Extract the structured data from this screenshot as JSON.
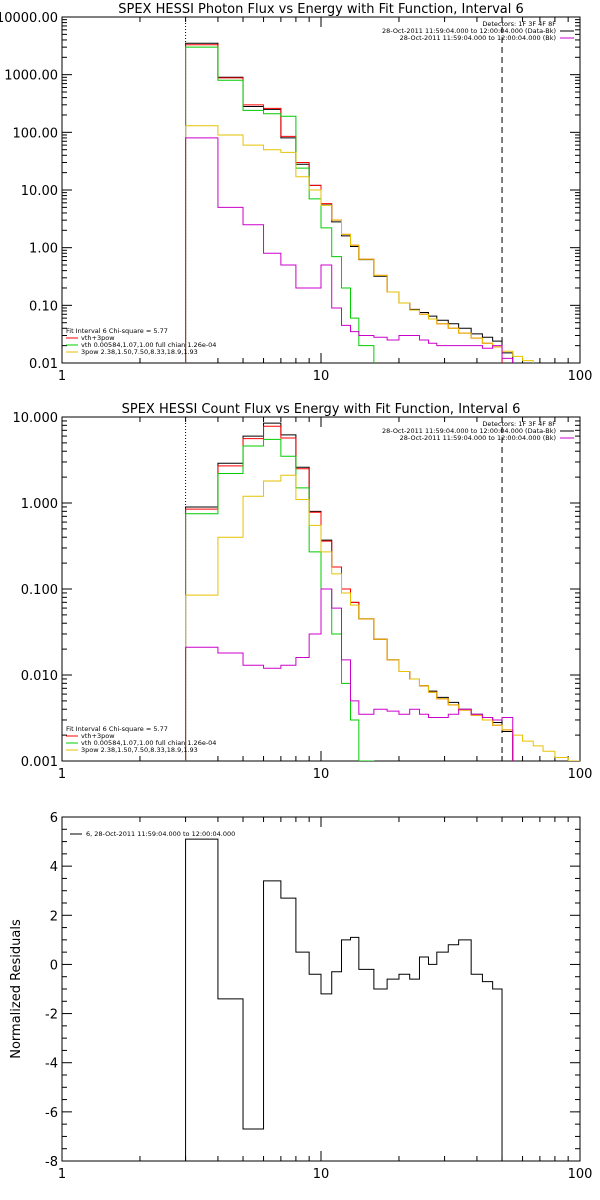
{
  "chart_data": [
    {
      "type": "line",
      "title": "SPEX HESSI Photon Flux vs Energy with Fit Function, Interval 6",
      "xscale": "log",
      "yscale": "log",
      "xlim": [
        1,
        100
      ],
      "ylim": [
        0.01,
        10000
      ],
      "xticks": [
        "1",
        "10",
        "100"
      ],
      "yticks": [
        "0.01",
        "0.10",
        "1.00",
        "10.00",
        "100.00",
        "1000.00",
        "10000.00"
      ],
      "vlines": [
        {
          "x": 3,
          "style": "dotted"
        },
        {
          "x": 50,
          "style": "dashed"
        }
      ],
      "top_legend": [
        {
          "text": "Detectors: 1F 3F 4F 8F",
          "color": "#000000"
        },
        {
          "text": "28-Oct-2011 11:59:04.000 to 12:00:04.000 (Data-Bk)",
          "color": "#000000"
        },
        {
          "text": "28-Oct-2011 11:59:04.000 to 12:00:04.000 (Bk)",
          "color": "#cc00cc"
        }
      ],
      "fit_legend_header": "Fit Interval 6   Chi-square = 5.77",
      "fit_legend": [
        {
          "text": "vth+3pow",
          "color": "#ff0000"
        },
        {
          "text": "vth 0.00584,1.07,1.00  full chian 1.26e-04",
          "color": "#00cc00"
        },
        {
          "text": "3pow 2.38,1.50,7.50,8.33,18.9,1.93",
          "color": "#e6c200"
        }
      ],
      "edges": [
        3,
        4,
        5,
        6,
        7,
        8,
        9,
        10,
        11,
        12,
        13,
        14,
        16,
        18,
        20,
        22,
        24,
        26,
        28,
        31,
        34,
        38,
        42,
        46,
        50,
        55,
        60,
        66,
        72
      ],
      "series": [
        {
          "color": "#000000",
          "values": [
            3500,
            900,
            280,
            250,
            80,
            28,
            12,
            5.5,
            2.8,
            1.6,
            1.05,
            0.62,
            0.32,
            0.17,
            0.11,
            0.085,
            0.075,
            0.065,
            0.055,
            0.048,
            0.04,
            0.032,
            0.028,
            0.024,
            0.015
          ]
        },
        {
          "color": "#ff0000",
          "values": [
            3300,
            880,
            300,
            260,
            85,
            30,
            12,
            5.8,
            3,
            1.7,
            1.1,
            0.63,
            0.33,
            0.17,
            0.11,
            0.083,
            0.07,
            0.058,
            0.048,
            0.04,
            0.033,
            0.027,
            0.022,
            0.019
          ]
        },
        {
          "color": "#00cc00",
          "values": [
            3000,
            800,
            240,
            210,
            190,
            24,
            7,
            2.2,
            0.7,
            0.2,
            0.06,
            0.02,
            0.008
          ]
        },
        {
          "color": "#e6c200",
          "values": [
            130,
            90,
            60,
            50,
            45,
            17,
            10,
            5.4,
            3,
            1.7,
            1.1,
            0.63,
            0.33,
            0.17,
            0.11,
            0.083,
            0.07,
            0.058,
            0.048,
            0.04,
            0.033,
            0.027,
            0.022,
            0.019,
            0.016,
            0.013,
            0.011,
            0.009
          ]
        },
        {
          "color": "#cc00cc",
          "values": [
            80,
            5,
            2.5,
            0.8,
            0.5,
            0.2,
            0.2,
            0.5,
            0.09,
            0.045,
            0.035,
            0.03,
            0.028,
            0.025,
            0.03,
            0.03,
            0.025,
            0.022,
            0.02,
            0.02,
            0.02,
            0.02,
            0.018,
            0.02,
            0.012
          ]
        }
      ]
    },
    {
      "type": "line",
      "title": "SPEX HESSI Count Flux vs Energy with Fit Function, Interval 6",
      "xscale": "log",
      "yscale": "log",
      "xlim": [
        1,
        100
      ],
      "ylim": [
        0.001,
        10
      ],
      "xticks": [
        "1",
        "10",
        "100"
      ],
      "yticks": [
        "0.001",
        "0.010",
        "0.100",
        "1.000",
        "10.000"
      ],
      "vlines": [
        {
          "x": 3,
          "style": "dotted"
        },
        {
          "x": 50,
          "style": "dashed"
        }
      ],
      "top_legend": [
        {
          "text": "Detectors: 1F 3F 4F 8F",
          "color": "#000000"
        },
        {
          "text": "28-Oct-2011 11:59:04.000 to 12:00:04.000 (Data-Bk)",
          "color": "#000000"
        },
        {
          "text": "28-Oct-2011 11:59:04.000 to 12:00:04.000 (Bk)",
          "color": "#cc00cc"
        }
      ],
      "fit_legend_header": "Fit Interval 6   Chi-square = 5.77",
      "fit_legend": [
        {
          "text": "vth+3pow",
          "color": "#ff0000"
        },
        {
          "text": "vth 0.00584,1.07,1.00  full chian 1.26e-04",
          "color": "#00cc00"
        },
        {
          "text": "3pow 2.38,1.50,7.50,8.33,18.9,1.93",
          "color": "#e6c200"
        }
      ],
      "edges": [
        3,
        4,
        5,
        6,
        7,
        8,
        9,
        10,
        11,
        12,
        13,
        14,
        16,
        18,
        20,
        22,
        24,
        26,
        28,
        31,
        34,
        38,
        42,
        46,
        50,
        55,
        60,
        66,
        72,
        80,
        90,
        100
      ],
      "series": [
        {
          "color": "#000000",
          "values": [
            0.9,
            2.9,
            6,
            8.5,
            6.2,
            2.6,
            0.8,
            0.37,
            0.18,
            0.1,
            0.07,
            0.045,
            0.026,
            0.015,
            0.011,
            0.009,
            0.0075,
            0.0065,
            0.0055,
            0.0048,
            0.004,
            0.0035,
            0.0032,
            0.0028,
            0.0022
          ]
        },
        {
          "color": "#ff0000",
          "values": [
            0.85,
            2.7,
            5.6,
            7.8,
            5.7,
            2.5,
            0.78,
            0.36,
            0.18,
            0.1,
            0.07,
            0.045,
            0.026,
            0.015,
            0.011,
            0.009,
            0.0075,
            0.0063,
            0.0053,
            0.0045,
            0.0039,
            0.0034,
            0.003,
            0.0026,
            0.0023
          ]
        },
        {
          "color": "#00cc00",
          "values": [
            0.75,
            2.2,
            4.6,
            5.5,
            3.5,
            1.5,
            0.27,
            0.1,
            0.03,
            0.008,
            0.003,
            0.001
          ]
        },
        {
          "color": "#e6c200",
          "values": [
            0.085,
            0.4,
            1.2,
            1.8,
            2.1,
            1.1,
            0.55,
            0.27,
            0.15,
            0.09,
            0.065,
            0.045,
            0.026,
            0.015,
            0.011,
            0.009,
            0.0075,
            0.0063,
            0.0053,
            0.0045,
            0.0039,
            0.0034,
            0.003,
            0.0026,
            0.0023,
            0.002,
            0.0017,
            0.0015,
            0.0013,
            0.0011,
            0.001
          ]
        },
        {
          "color": "#cc00cc",
          "values": [
            0.021,
            0.018,
            0.013,
            0.012,
            0.013,
            0.016,
            0.03,
            0.1,
            0.06,
            0.015,
            0.005,
            0.0035,
            0.004,
            0.0038,
            0.0035,
            0.004,
            0.0035,
            0.0032,
            0.0032,
            0.0035,
            0.004,
            0.0035,
            0.0032,
            0.003,
            0.0032
          ]
        }
      ]
    },
    {
      "type": "line",
      "title": "",
      "xscale": "log",
      "yscale": "linear",
      "xlim": [
        1,
        100
      ],
      "ylim": [
        -8,
        6
      ],
      "xticks": [
        "1",
        "10",
        "100"
      ],
      "yticks": [
        "-8",
        "-6",
        "-4",
        "-2",
        "0",
        "2",
        "4",
        "6"
      ],
      "ylabel": "Normalized Residuals",
      "legend": {
        "text": "6, 28-Oct-2011 11:59:04.000 to 12:00:04.000",
        "color": "#000000"
      },
      "edges": [
        3,
        4,
        5,
        6,
        7,
        8,
        9,
        10,
        11,
        12,
        13,
        14,
        16,
        18,
        20,
        22,
        24,
        26,
        28,
        31,
        34,
        38,
        42,
        46,
        50
      ],
      "series": [
        {
          "color": "#000000",
          "values": [
            5.1,
            -1.4,
            -6.7,
            3.4,
            2.7,
            0.5,
            -0.4,
            -1.2,
            -0.3,
            1.0,
            1.1,
            -0.2,
            -1.0,
            -0.6,
            -0.4,
            -0.6,
            0.3,
            0.0,
            0.5,
            0.8,
            1.0,
            -0.4,
            -0.7,
            -1.0
          ]
        }
      ]
    }
  ]
}
